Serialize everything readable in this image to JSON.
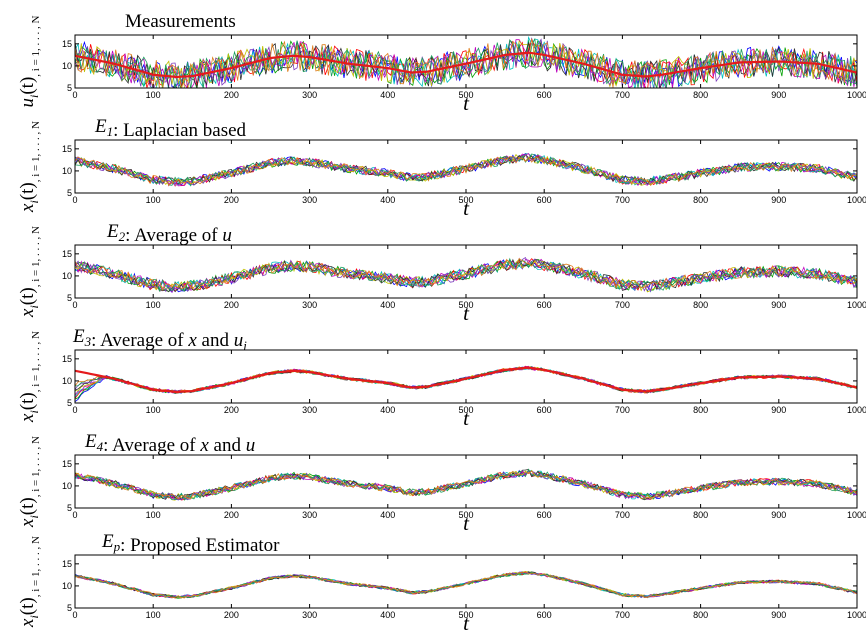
{
  "chart_data": [
    {
      "type": "line",
      "title": "Measurements",
      "ylabel": "u_i(t), i = 1, . . . , N",
      "xlabel": "t",
      "xlim": [
        0,
        1000
      ],
      "ylim": [
        5,
        17
      ],
      "xticks": [
        0,
        100,
        200,
        300,
        400,
        500,
        600,
        700,
        800,
        900,
        1000
      ],
      "yticks": [
        5,
        10,
        15
      ],
      "noise_amplitude": 3.5,
      "reference": {
        "color": "#e41a1c",
        "x": [
          0,
          50,
          100,
          130,
          150,
          200,
          250,
          280,
          300,
          350,
          400,
          430,
          450,
          500,
          550,
          580,
          600,
          650,
          700,
          730,
          750,
          800,
          850,
          900,
          920,
          950,
          1000
        ],
        "y": [
          12.3,
          10.5,
          8,
          7.5,
          7.7,
          9.5,
          11.8,
          12.3,
          12,
          10.5,
          9.5,
          8.5,
          8.7,
          10.5,
          12.5,
          13,
          12.5,
          10.5,
          8,
          7.6,
          8,
          9.5,
          10.8,
          11,
          10.8,
          10.5,
          8.5
        ]
      }
    },
    {
      "type": "line",
      "title": "E_1: Laplacian based",
      "ylabel": "x_i(t), i = 1, . . . , N",
      "xlabel": "t",
      "xlim": [
        0,
        1000
      ],
      "ylim": [
        5,
        17
      ],
      "xticks": [
        0,
        100,
        200,
        300,
        400,
        500,
        600,
        700,
        800,
        900,
        1000
      ],
      "yticks": [
        5,
        10,
        15
      ],
      "noise_amplitude": 1.0
    },
    {
      "type": "line",
      "title": "E_2: Average of u",
      "ylabel": "x_i(t), i = 1, . . . , N",
      "xlabel": "t",
      "xlim": [
        0,
        1000
      ],
      "ylim": [
        5,
        17
      ],
      "xticks": [
        0,
        100,
        200,
        300,
        400,
        500,
        600,
        700,
        800,
        900,
        1000
      ],
      "yticks": [
        5,
        10,
        15
      ],
      "noise_amplitude": 1.3
    },
    {
      "type": "line",
      "title": "E_3: Average of x and u_i",
      "ylabel": "x_i(t), i = 1, . . . , N",
      "xlabel": "t",
      "xlim": [
        0,
        1000
      ],
      "ylim": [
        5,
        17
      ],
      "xticks": [
        0,
        100,
        200,
        300,
        400,
        500,
        600,
        700,
        800,
        900,
        1000
      ],
      "yticks": [
        5,
        10,
        15
      ],
      "noise_amplitude": 0.4,
      "initial_transient": {
        "start_y": 5.5,
        "duration": 40
      },
      "reference": {
        "color": "#e41a1c"
      }
    },
    {
      "type": "line",
      "title": "E_4: Average of x and u",
      "ylabel": "x_i(t), i = 1, . . . , N",
      "xlabel": "t",
      "xlim": [
        0,
        1000
      ],
      "ylim": [
        5,
        17
      ],
      "xticks": [
        0,
        100,
        200,
        300,
        400,
        500,
        600,
        700,
        800,
        900,
        1000
      ],
      "yticks": [
        5,
        10,
        15
      ],
      "noise_amplitude": 0.8
    },
    {
      "type": "line",
      "title": "E_p: Proposed Estimator",
      "ylabel": "x_i(t), i = 1, . . . , N",
      "xlabel": "t",
      "xlim": [
        0,
        1000
      ],
      "ylim": [
        5,
        17
      ],
      "xticks": [
        0,
        100,
        200,
        300,
        400,
        500,
        600,
        700,
        800,
        900,
        1000
      ],
      "yticks": [
        5,
        10,
        15
      ],
      "noise_amplitude": 0.35
    }
  ],
  "series_colors": [
    "#0000ff",
    "#00a000",
    "#ff0000",
    "#00c0c0",
    "#c000c0",
    "#c0c000",
    "#303030",
    "#7f3fbf",
    "#1f9f5f",
    "#df7f1f"
  ]
}
